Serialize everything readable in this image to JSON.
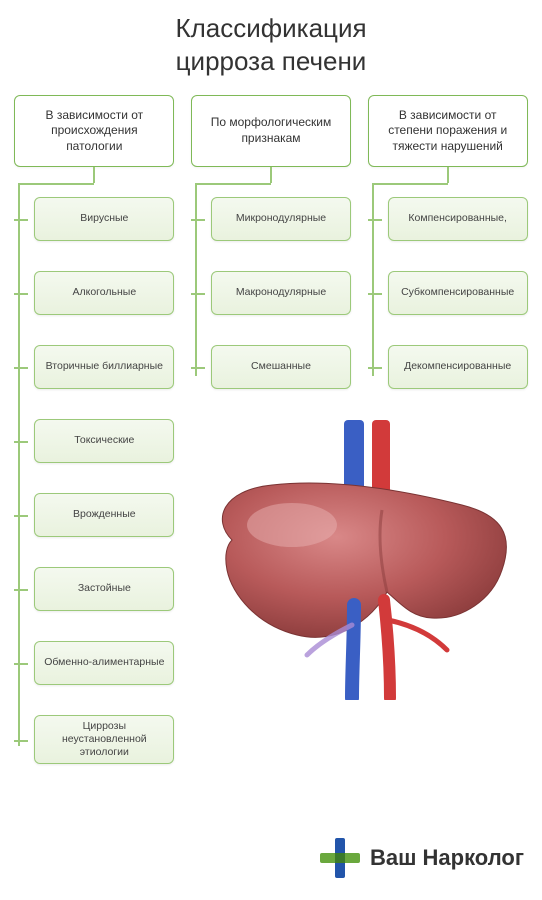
{
  "title_line1": "Классификация",
  "title_line2": "цирроза печени",
  "columns": [
    {
      "header": "В зависимости от происхождения патологии",
      "items": [
        "Вирусные",
        "Алкогольные",
        "Вторичные биллиарные",
        "Токсические",
        "Врожденные",
        "Застойные",
        "Обменно-алиментарные",
        "Циррозы неустановленной этиологии"
      ]
    },
    {
      "header": "По морфологическим признакам",
      "items": [
        "Микронодулярные",
        "Макронодулярные",
        "Смешанные"
      ]
    },
    {
      "header": "В зависимости от степени поражения и тяжести нарушений",
      "items": [
        "Компенсированные,",
        "Субкомпенсированные",
        "Декомпенсированные"
      ]
    }
  ],
  "logo_text": "Ваш Нарколог",
  "style": {
    "page_bg": "#ffffff",
    "title_color": "#333333",
    "title_fontsize": 26,
    "header_border": "#7fb957",
    "header_bg": "#ffffff",
    "header_fontsize": 12,
    "item_border": "#9cc97a",
    "item_bg_top": "#f4f9ef",
    "item_bg_bottom": "#e9f2de",
    "item_fontsize": 10.5,
    "connector_color": "#9cc97a",
    "logo_text_color": "#333333",
    "logo_text_fontsize": 22,
    "logo_cross_blue": "#2255aa",
    "logo_cross_green": "#6aa83d",
    "liver_main": "#b85a5a",
    "liver_dark": "#8a3b3b",
    "liver_light": "#d98888",
    "vein_blue": "#3a5fc4",
    "artery_red": "#d23a3a"
  }
}
